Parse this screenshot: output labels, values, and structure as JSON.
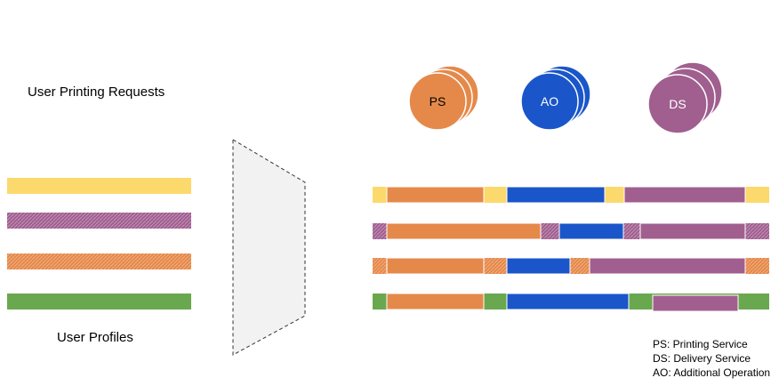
{
  "labels": {
    "requests": "User Printing Requests",
    "profiles": "User Profiles"
  },
  "services": [
    {
      "abbr": "PS",
      "color": "#e5894a",
      "type": "printing"
    },
    {
      "abbr": "AO",
      "color": "#1a56c9",
      "type": "additional"
    },
    {
      "abbr": "DS",
      "color": "#a05f8f",
      "type": "delivery"
    }
  ],
  "legend": [
    "PS: Printing Service",
    "DS: Delivery Service",
    "AO: Additional Operation"
  ],
  "colors": {
    "yellow": "#fcd96c",
    "purple": "#a05f8f",
    "orange_light": "#e5894a",
    "green": "#6aa84f",
    "ps": "#e5894a",
    "ao": "#1a56c9",
    "ds": "#a05f8f"
  }
}
